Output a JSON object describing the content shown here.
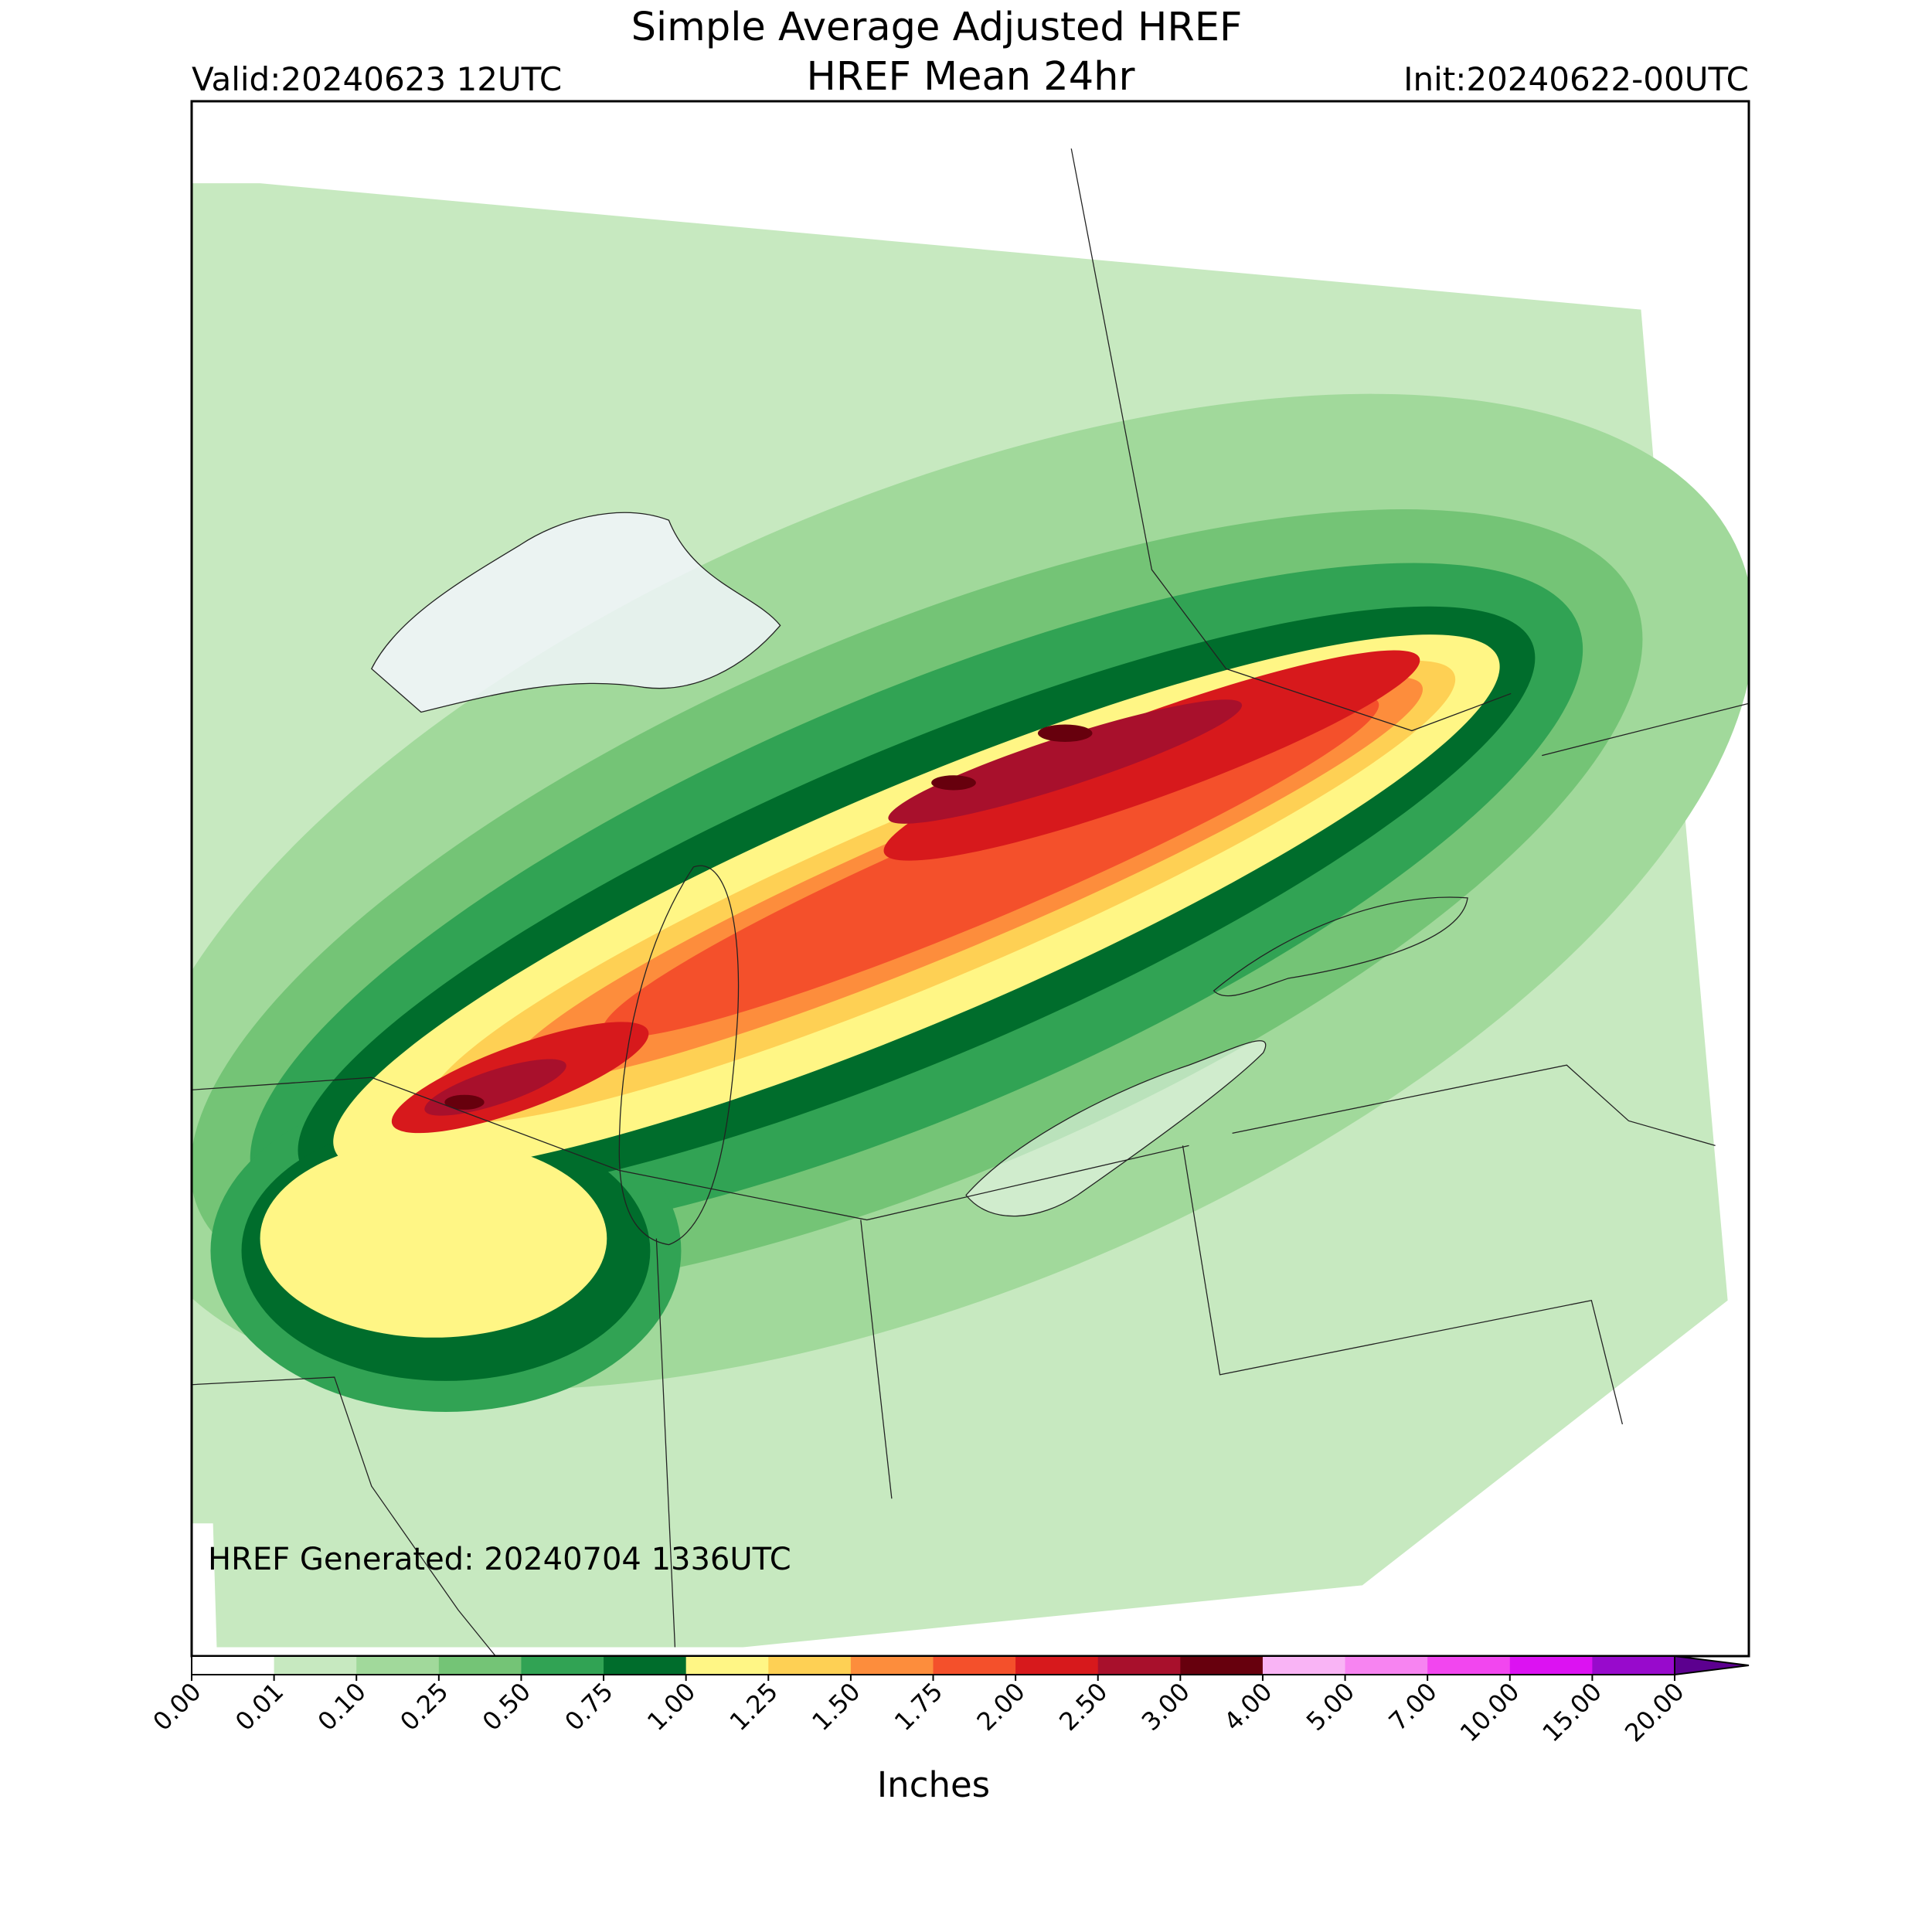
{
  "title": [
    "Simple Average Adjusted HREF",
    "HREF Mean 24hr"
  ],
  "valid": "Valid:20240623 12UTC",
  "init": "Init:20240622-00UTC",
  "generated": "HREF Generated: 20240704 1336UTC",
  "colorbar": {
    "label": "Inches",
    "ticks": [
      {
        "value": 0,
        "label": "0.00"
      },
      {
        "value": 0.01,
        "label": "0.01"
      },
      {
        "value": 0.1,
        "label": "0.10"
      },
      {
        "value": 0.25,
        "label": "0.25"
      },
      {
        "value": 0.5,
        "label": "0.50"
      },
      {
        "value": 0.75,
        "label": "0.75"
      },
      {
        "value": 1,
        "label": "1.00"
      },
      {
        "value": 1.25,
        "label": "1.25"
      },
      {
        "value": 1.5,
        "label": "1.50"
      },
      {
        "value": 1.75,
        "label": "1.75"
      },
      {
        "value": 2,
        "label": "2.00"
      },
      {
        "value": 2.5,
        "label": "2.50"
      },
      {
        "value": 3,
        "label": "3.00"
      },
      {
        "value": 4,
        "label": "4.00"
      },
      {
        "value": 5,
        "label": "5.00"
      },
      {
        "value": 7,
        "label": "7.00"
      },
      {
        "value": 10,
        "label": "10.00"
      },
      {
        "value": 15,
        "label": "15.00"
      },
      {
        "value": 20,
        "label": "20.00"
      }
    ],
    "colors": [
      "#ffffff",
      "#c7e9c0",
      "#a1d99b",
      "#74c476",
      "#31a354",
      "#006d2c",
      "#fff685",
      "#fed054",
      "#fd8d3c",
      "#f4502b",
      "#d7191c",
      "#a8102c",
      "#67000d",
      "#f9b4f5",
      "#f784f1",
      "#f246ef",
      "#dc12f2",
      "#980acc"
    ],
    "over_color": "#5c008f"
  }
}
